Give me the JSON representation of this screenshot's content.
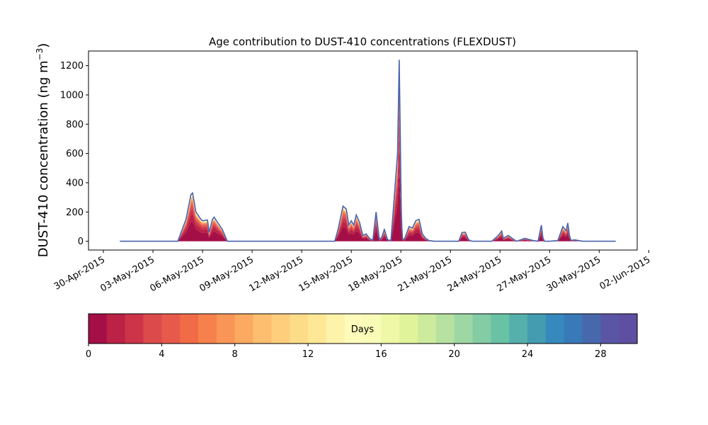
{
  "chart_data": {
    "type": "area",
    "title": "Age contribution to DUST-410 concentrations (FLEXDUST)",
    "ylabel_main": "DUST-410 concentration (ng m",
    "ylabel_sup": "−3",
    "ylabel_close": ")",
    "xlabel": "",
    "ylim": [
      -60,
      1300
    ],
    "yticks": [
      0,
      200,
      400,
      600,
      800,
      1000,
      1200
    ],
    "xlim_days": [
      -0.9,
      32.3
    ],
    "xtick_labels": [
      "30-Apr-2015",
      "03-May-2015",
      "06-May-2015",
      "09-May-2015",
      "12-May-2015",
      "15-May-2015",
      "18-May-2015",
      "21-May-2015",
      "24-May-2015",
      "27-May-2015",
      "30-May-2015",
      "02-Jun-2015"
    ],
    "x_start_date": "2015-04-30",
    "series_total": {
      "days": [
        1.0,
        4.5,
        5.0,
        5.3,
        5.4,
        5.6,
        5.9,
        6.0,
        6.3,
        6.4,
        6.6,
        6.7,
        6.9,
        7.2,
        7.5,
        13.5,
        14.0,
        14.2,
        14.5,
        14.7,
        14.85,
        15.0,
        15.15,
        15.3,
        15.5,
        15.7,
        15.9,
        16.1,
        16.3,
        16.5,
        16.7,
        16.85,
        17.0,
        17.2,
        17.4,
        17.6,
        17.8,
        17.9,
        17.93,
        17.97,
        18.0,
        18.03,
        18.06,
        18.1,
        18.2,
        18.5,
        18.7,
        18.9,
        19.1,
        19.3,
        19.5,
        19.7,
        20.0,
        20.5,
        21.0,
        21.5,
        21.7,
        21.9,
        22.1,
        22.3,
        22.7,
        23.5,
        23.9,
        24.1,
        24.2,
        24.5,
        24.8,
        25.0,
        25.5,
        26.0,
        26.3,
        26.5,
        26.6,
        26.7,
        27.0,
        27.5,
        27.8,
        28.0,
        28.1,
        28.2,
        28.3,
        28.5,
        29.0,
        29.5,
        30.0,
        31.0
      ],
      "values": [
        0,
        0,
        150,
        320,
        330,
        200,
        150,
        140,
        145,
        60,
        150,
        165,
        130,
        80,
        0,
        0,
        0,
        80,
        240,
        220,
        110,
        140,
        110,
        180,
        130,
        40,
        50,
        20,
        5,
        200,
        10,
        30,
        80,
        10,
        5,
        300,
        600,
        1240,
        1000,
        680,
        400,
        200,
        100,
        20,
        10,
        100,
        90,
        140,
        150,
        50,
        20,
        5,
        0,
        0,
        0,
        0,
        60,
        62,
        10,
        0,
        0,
        0,
        40,
        70,
        20,
        40,
        15,
        0,
        20,
        5,
        0,
        110,
        20,
        0,
        0,
        5,
        100,
        70,
        125,
        40,
        5,
        10,
        0,
        0,
        0,
        0
      ]
    },
    "age_fractions": [
      0.42,
      0.16,
      0.1,
      0.07,
      0.05,
      0.04,
      0.03,
      0.025,
      0.02,
      0.015,
      0.012,
      0.01,
      0.01,
      0.008,
      0.007,
      0.006,
      0.005,
      0.004,
      0.004,
      0.003,
      0.003,
      0.003,
      0.003,
      0.002,
      0.002,
      0.002,
      0.002,
      0.002,
      0.002,
      0.002
    ],
    "colorbar": {
      "label": "Days",
      "min": 0,
      "max": 30,
      "ticks": [
        0,
        4,
        8,
        12,
        16,
        20,
        24,
        28
      ],
      "colors": [
        "#a50f47",
        "#bb2246",
        "#cd3449",
        "#dd4a4c",
        "#e75a4b",
        "#f06b46",
        "#f6814c",
        "#f99657",
        "#fcaa61",
        "#fdbe6f",
        "#fece7c",
        "#fddc88",
        "#fee795",
        "#fff2a9",
        "#fffbba",
        "#f8fcb6",
        "#eef8a6",
        "#e0f39b",
        "#cdeb9c",
        "#b6e1a1",
        "#9dd7a4",
        "#83cca4",
        "#6ac2a5",
        "#55b0ab",
        "#449cb1",
        "#3689bd",
        "#3a79b8",
        "#4868ae",
        "#5a56a5",
        "#5e4fa2"
      ]
    }
  }
}
